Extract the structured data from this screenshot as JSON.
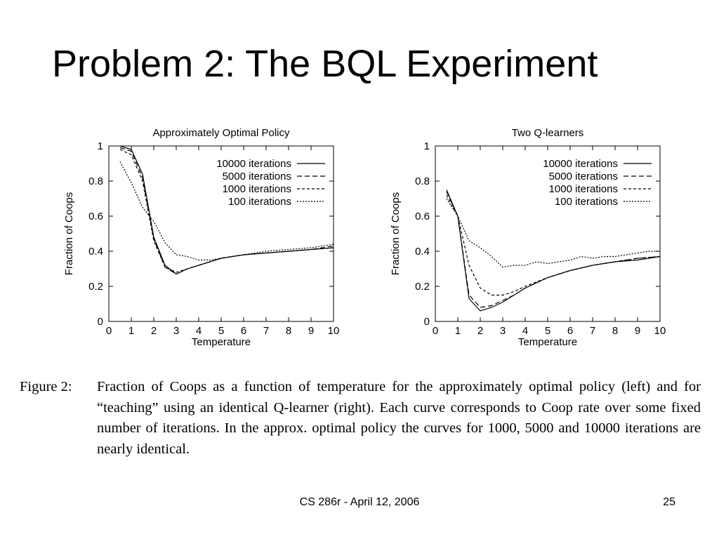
{
  "slide": {
    "title": "Problem 2: The BQL Experiment",
    "footer": "CS 286r - April 12, 2006",
    "page_number": "25"
  },
  "caption": {
    "label": "Figure 2:",
    "text": "Fraction of Coops as a function of temperature for the approximately optimal policy (left) and for “teaching” using an identical Q-learner (right). Each curve corresponds to Coop rate over some fixed number of iterations. In the approx. optimal policy the curves for 1000, 5000 and 10000 iterations are nearly identical."
  },
  "chart_data": [
    {
      "type": "line",
      "title": "Approximately Optimal Policy",
      "xlabel": "Temperature",
      "ylabel": "Fraction of Coops",
      "xlim": [
        0,
        10
      ],
      "ylim": [
        0,
        1
      ],
      "xticks": [
        0,
        1,
        2,
        3,
        4,
        5,
        6,
        7,
        8,
        9,
        10
      ],
      "yticks": [
        0,
        0.2,
        0.4,
        0.6,
        0.8,
        1
      ],
      "legend_position": "top-right",
      "series": [
        {
          "name": "10000 iterations",
          "dash": "solid",
          "x": [
            0.5,
            1,
            1.5,
            2,
            2.5,
            3,
            3.5,
            4,
            5,
            6,
            7,
            8,
            9,
            10
          ],
          "y": [
            1.0,
            0.98,
            0.84,
            0.48,
            0.32,
            0.27,
            0.3,
            0.32,
            0.36,
            0.38,
            0.39,
            0.4,
            0.41,
            0.42
          ]
        },
        {
          "name": "5000 iterations",
          "dash": "dashed",
          "x": [
            0.5,
            1,
            1.5,
            2,
            2.5,
            3,
            3.5,
            4,
            5,
            6,
            7,
            8,
            9,
            10
          ],
          "y": [
            0.99,
            0.97,
            0.82,
            0.47,
            0.31,
            0.27,
            0.3,
            0.32,
            0.36,
            0.38,
            0.39,
            0.4,
            0.41,
            0.43
          ]
        },
        {
          "name": "1000 iterations",
          "dash": "short-dashed",
          "x": [
            0.5,
            1,
            1.5,
            2,
            2.5,
            3,
            3.5,
            4,
            5,
            6,
            7,
            8,
            9,
            10
          ],
          "y": [
            0.98,
            0.95,
            0.8,
            0.46,
            0.31,
            0.28,
            0.3,
            0.32,
            0.36,
            0.38,
            0.39,
            0.4,
            0.41,
            0.42
          ]
        },
        {
          "name": "100 iterations",
          "dash": "dotted",
          "x": [
            0.5,
            1,
            1.5,
            2,
            2.5,
            3,
            3.5,
            4,
            4.5,
            5,
            6,
            7,
            8,
            9,
            10
          ],
          "y": [
            0.91,
            0.79,
            0.65,
            0.57,
            0.45,
            0.38,
            0.37,
            0.35,
            0.35,
            0.36,
            0.38,
            0.4,
            0.41,
            0.42,
            0.44
          ]
        }
      ]
    },
    {
      "type": "line",
      "title": "Two Q-learners",
      "xlabel": "Temperature",
      "ylabel": "Fraction of Coops",
      "xlim": [
        0,
        10
      ],
      "ylim": [
        0,
        1
      ],
      "xticks": [
        0,
        1,
        2,
        3,
        4,
        5,
        6,
        7,
        8,
        9,
        10
      ],
      "yticks": [
        0,
        0.2,
        0.4,
        0.6,
        0.8,
        1
      ],
      "legend_position": "top-right",
      "series": [
        {
          "name": "10000 iterations",
          "dash": "solid",
          "x": [
            0.5,
            1,
            1.5,
            2,
            2.5,
            3,
            3.5,
            4,
            5,
            6,
            7,
            8,
            9,
            10
          ],
          "y": [
            0.75,
            0.6,
            0.13,
            0.06,
            0.08,
            0.11,
            0.15,
            0.19,
            0.25,
            0.29,
            0.32,
            0.34,
            0.35,
            0.37
          ]
        },
        {
          "name": "5000 iterations",
          "dash": "dashed",
          "x": [
            0.5,
            1,
            1.5,
            2,
            2.5,
            3,
            3.5,
            4,
            5,
            6,
            7,
            8,
            9,
            10
          ],
          "y": [
            0.74,
            0.6,
            0.15,
            0.08,
            0.09,
            0.12,
            0.15,
            0.19,
            0.25,
            0.29,
            0.32,
            0.34,
            0.36,
            0.37
          ]
        },
        {
          "name": "1000 iterations",
          "dash": "short-dashed",
          "x": [
            0.5,
            1,
            1.5,
            2,
            2.5,
            3,
            3.5,
            4,
            5,
            6,
            7,
            8,
            9,
            10
          ],
          "y": [
            0.72,
            0.6,
            0.32,
            0.19,
            0.15,
            0.15,
            0.17,
            0.2,
            0.25,
            0.29,
            0.32,
            0.34,
            0.36,
            0.37
          ]
        },
        {
          "name": "100 iterations",
          "dash": "dotted",
          "x": [
            0.5,
            1,
            1.5,
            2,
            2.5,
            3,
            3.5,
            4,
            4.5,
            5,
            5.5,
            6,
            6.5,
            7,
            7.5,
            8,
            8.5,
            9,
            9.5,
            10
          ],
          "y": [
            0.7,
            0.6,
            0.46,
            0.42,
            0.37,
            0.31,
            0.32,
            0.32,
            0.34,
            0.33,
            0.34,
            0.35,
            0.37,
            0.36,
            0.37,
            0.37,
            0.38,
            0.39,
            0.4,
            0.4
          ]
        }
      ]
    }
  ]
}
